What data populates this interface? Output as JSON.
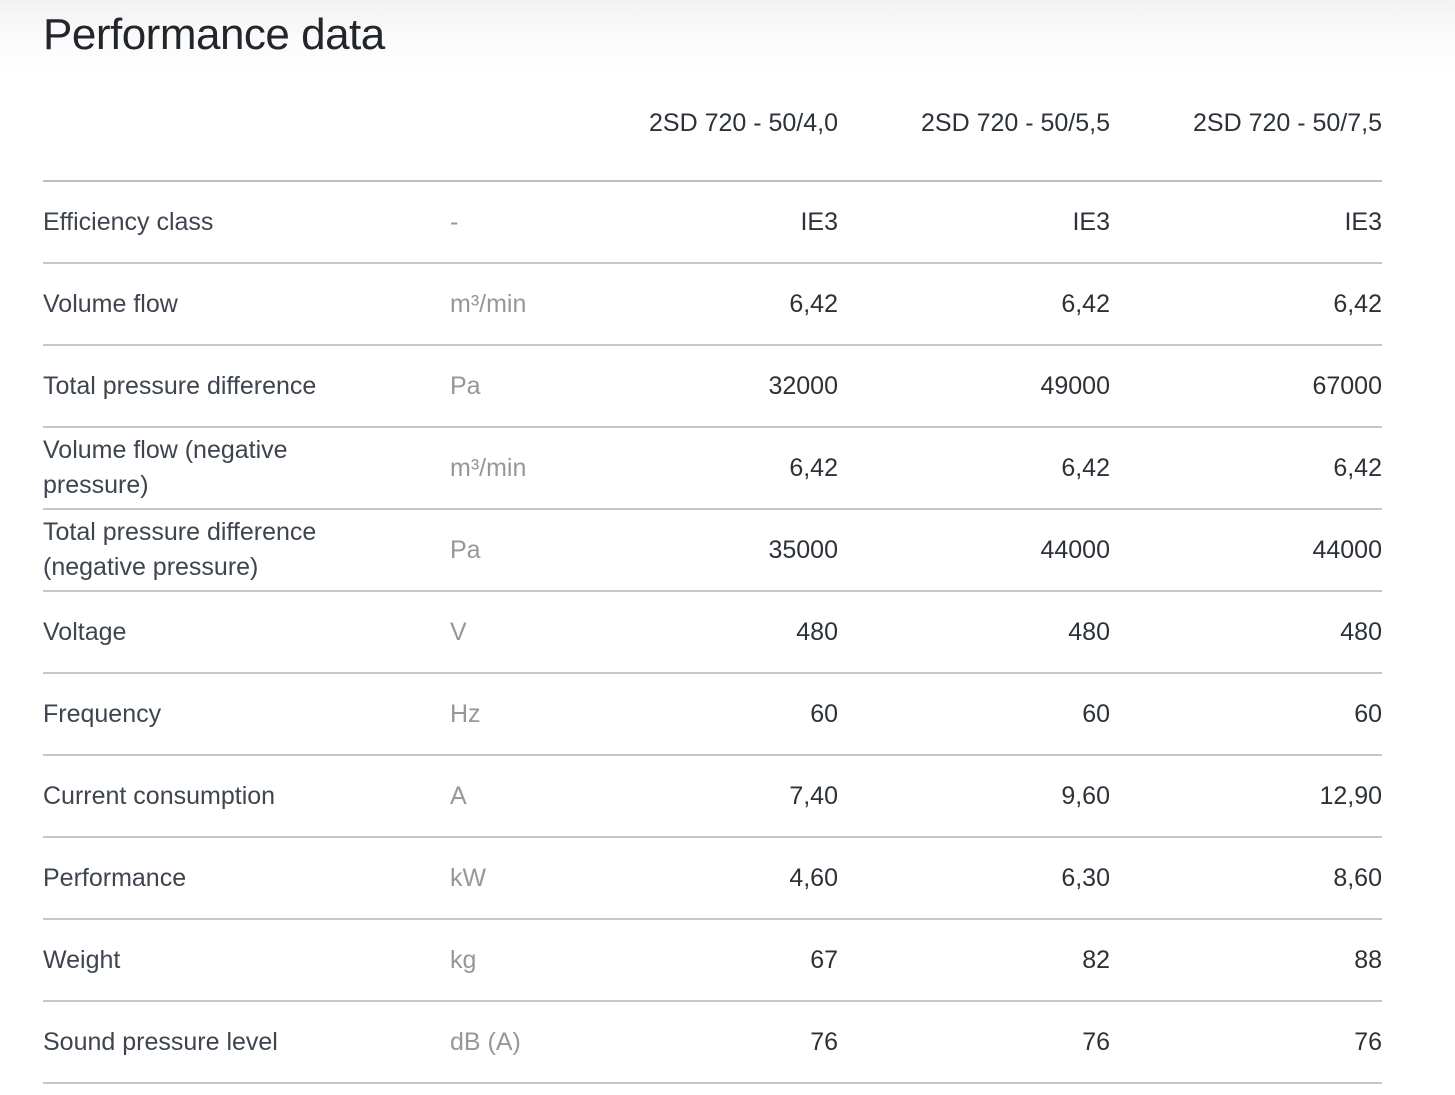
{
  "page": {
    "title": "Performance data"
  },
  "table": {
    "columns": [
      "2SD 720 - 50/4,0",
      "2SD 720 - 50/5,5",
      "2SD 720 - 50/7,5"
    ],
    "rows": [
      {
        "label": "Efficiency class",
        "unit": "-",
        "values": [
          "IE3",
          "IE3",
          "IE3"
        ]
      },
      {
        "label": "Volume flow",
        "unit": "m³/min",
        "values": [
          "6,42",
          "6,42",
          "6,42"
        ]
      },
      {
        "label": "Total pressure difference",
        "unit": "Pa",
        "values": [
          "32000",
          "49000",
          "67000"
        ]
      },
      {
        "label": "Volume flow (negative pressure)",
        "unit": "m³/min",
        "values": [
          "6,42",
          "6,42",
          "6,42"
        ]
      },
      {
        "label": "Total pressure difference (negative pressure)",
        "unit": "Pa",
        "values": [
          "35000",
          "44000",
          "44000"
        ]
      },
      {
        "label": "Voltage",
        "unit": "V",
        "values": [
          "480",
          "480",
          "480"
        ]
      },
      {
        "label": "Frequency",
        "unit": "Hz",
        "values": [
          "60",
          "60",
          "60"
        ]
      },
      {
        "label": "Current consumption",
        "unit": "A",
        "values": [
          "7,40",
          "9,60",
          "12,90"
        ]
      },
      {
        "label": "Performance",
        "unit": "kW",
        "values": [
          "4,60",
          "6,30",
          "8,60"
        ]
      },
      {
        "label": "Weight",
        "unit": "kg",
        "values": [
          "67",
          "82",
          "88"
        ]
      },
      {
        "label": "Sound pressure level",
        "unit": "dB (A)",
        "values": [
          "76",
          "76",
          "76"
        ]
      }
    ]
  },
  "colors": {
    "title_text": "#22262b",
    "label_text": "#3e454e",
    "unit_text": "#95979b",
    "value_text": "#2c3238",
    "divider": "#c6c6c6",
    "top_gradient_start": "#f2f2f3",
    "background": "#ffffff"
  }
}
